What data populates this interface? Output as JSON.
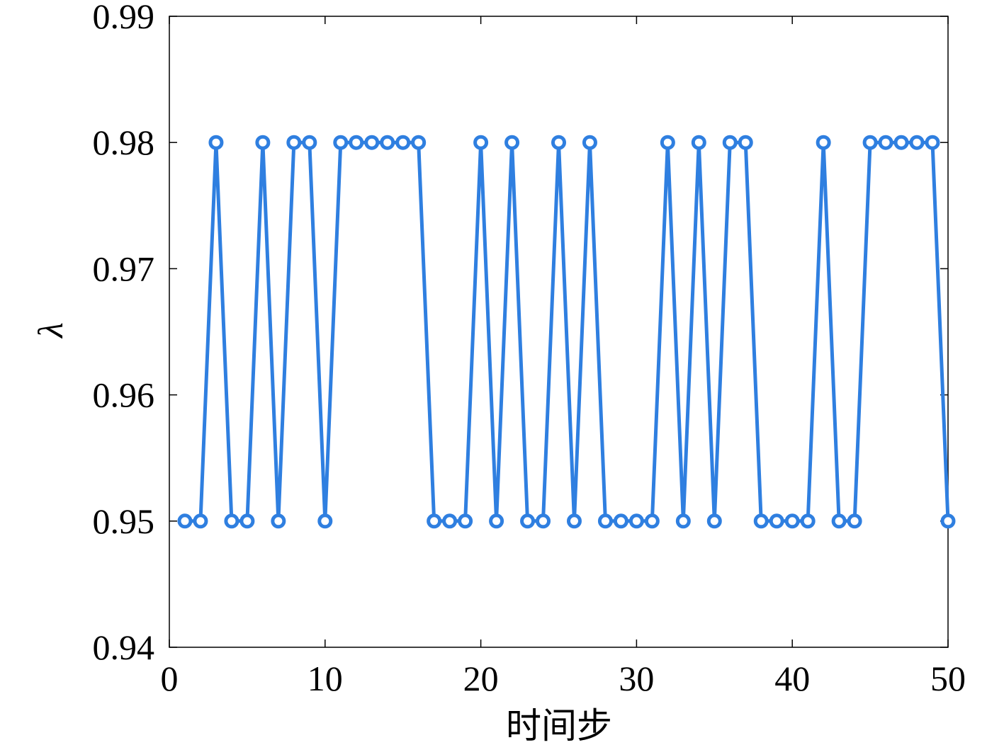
{
  "chart_data": {
    "type": "line",
    "xlabel": "时间步",
    "ylabel": "λ",
    "xlim": [
      0,
      50
    ],
    "ylim": [
      0.94,
      0.99
    ],
    "xticks": [
      0,
      10,
      20,
      30,
      40,
      50
    ],
    "xtick_labels": [
      "0",
      "10",
      "20",
      "30",
      "40",
      "50"
    ],
    "yticks": [
      0.94,
      0.95,
      0.96,
      0.97,
      0.98,
      0.99
    ],
    "ytick_labels": [
      "0.94",
      "0.95",
      "0.96",
      "0.97",
      "0.98",
      "0.99"
    ],
    "grid": false,
    "marker": "circle",
    "color": "#2f7fe0",
    "series": [
      {
        "x": [
          1,
          2,
          3,
          4,
          5,
          6,
          7,
          8,
          9,
          10,
          11,
          12,
          13,
          14,
          15,
          16,
          17,
          18,
          19,
          20,
          21,
          22,
          23,
          24,
          25,
          26,
          27,
          28,
          29,
          30,
          31,
          32,
          33,
          34,
          35,
          36,
          37,
          38,
          39,
          40,
          41,
          42,
          43,
          44,
          45,
          46,
          47,
          48,
          49,
          50
        ],
        "values": [
          0.95,
          0.95,
          0.98,
          0.95,
          0.95,
          0.98,
          0.95,
          0.98,
          0.98,
          0.95,
          0.98,
          0.98,
          0.98,
          0.98,
          0.98,
          0.98,
          0.95,
          0.95,
          0.95,
          0.98,
          0.95,
          0.98,
          0.95,
          0.95,
          0.98,
          0.95,
          0.98,
          0.95,
          0.95,
          0.95,
          0.95,
          0.98,
          0.95,
          0.98,
          0.95,
          0.98,
          0.98,
          0.95,
          0.95,
          0.95,
          0.95,
          0.98,
          0.95,
          0.95,
          0.98,
          0.98,
          0.98,
          0.98,
          0.98,
          0.95
        ]
      }
    ]
  }
}
